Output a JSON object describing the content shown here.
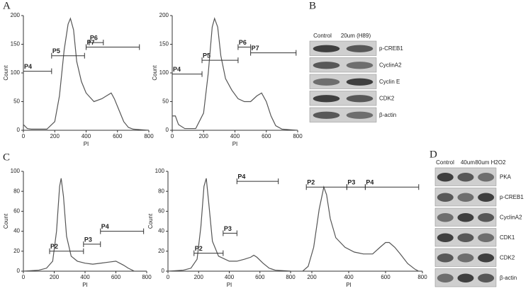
{
  "panel_labels": [
    "A",
    "B",
    "C",
    "D"
  ],
  "chart_data": [
    {
      "type": "line",
      "xlabel": "PI",
      "ylabel": "Count",
      "xlim": [
        0,
        800
      ],
      "ylim": [
        0,
        200
      ],
      "xticks": [
        0,
        200,
        400,
        600,
        800
      ],
      "yticks": [
        0,
        50,
        100,
        150,
        200
      ],
      "color": "#555555",
      "x": [
        0,
        25,
        50,
        100,
        150,
        200,
        230,
        260,
        285,
        300,
        320,
        340,
        370,
        400,
        450,
        500,
        530,
        560,
        580,
        610,
        640,
        670,
        700,
        750,
        800
      ],
      "y": [
        10,
        3,
        2,
        2,
        2,
        15,
        60,
        140,
        185,
        195,
        175,
        120,
        85,
        65,
        50,
        55,
        60,
        65,
        55,
        35,
        15,
        5,
        2,
        1,
        0
      ],
      "gates": [
        {
          "label": "P4",
          "x": [
            0,
            180
          ],
          "y": 103
        },
        {
          "label": "P5",
          "x": [
            180,
            390
          ],
          "y": 130
        },
        {
          "label": "P6",
          "x": [
            420,
            510
          ],
          "y": 153
        },
        {
          "label": "P7",
          "x": [
            400,
            740
          ],
          "y": 145
        }
      ]
    },
    {
      "type": "line",
      "xlabel": "PI",
      "ylabel": "Count",
      "xlim": [
        0,
        800
      ],
      "ylim": [
        0,
        200
      ],
      "xticks": [
        0,
        200,
        400,
        600,
        800
      ],
      "yticks": [
        0,
        50,
        100,
        150,
        200
      ],
      "color": "#555555",
      "x": [
        0,
        20,
        40,
        80,
        150,
        200,
        230,
        255,
        270,
        290,
        310,
        340,
        380,
        420,
        460,
        500,
        540,
        570,
        600,
        630,
        660,
        700,
        750,
        800
      ],
      "y": [
        25,
        25,
        10,
        3,
        3,
        30,
        100,
        180,
        195,
        180,
        130,
        90,
        70,
        55,
        50,
        50,
        60,
        65,
        50,
        25,
        8,
        2,
        1,
        0
      ],
      "gates": [
        {
          "label": "P4",
          "x": [
            0,
            190
          ],
          "y": 98
        },
        {
          "label": "P5",
          "x": [
            190,
            420
          ],
          "y": 122
        },
        {
          "label": "P6",
          "x": [
            420,
            500
          ],
          "y": 145
        },
        {
          "label": "P7",
          "x": [
            500,
            790
          ],
          "y": 135
        }
      ]
    },
    {
      "type": "line",
      "xlabel": "PI",
      "ylabel": "Count",
      "xlim": [
        0,
        800
      ],
      "ylim": [
        0,
        100
      ],
      "xticks": [
        0,
        200,
        400,
        600,
        800
      ],
      "yticks": [
        0,
        20,
        40,
        60,
        80,
        100
      ],
      "color": "#555555",
      "x": [
        0,
        100,
        150,
        190,
        215,
        235,
        245,
        260,
        280,
        310,
        350,
        400,
        450,
        500,
        550,
        600,
        650,
        680,
        720,
        800
      ],
      "y": [
        0,
        1,
        3,
        10,
        40,
        85,
        93,
        75,
        35,
        15,
        10,
        8,
        7,
        8,
        9,
        10,
        6,
        3,
        0,
        0
      ],
      "gates": [
        {
          "label": "P2",
          "x": [
            170,
            390
          ],
          "y": 20
        },
        {
          "label": "P3",
          "x": [
            390,
            500
          ],
          "y": 27
        },
        {
          "label": "P4",
          "x": [
            500,
            780
          ],
          "y": 40
        }
      ]
    },
    {
      "type": "line",
      "xlabel": "PI",
      "ylabel": "Count",
      "xlim": [
        0,
        800
      ],
      "ylim": [
        0,
        100
      ],
      "xticks": [
        0,
        200,
        400,
        600,
        800
      ],
      "yticks": [
        0,
        20,
        40,
        60,
        80,
        100
      ],
      "color": "#555555",
      "x": [
        0,
        100,
        150,
        190,
        215,
        235,
        250,
        265,
        290,
        330,
        400,
        450,
        500,
        540,
        560,
        580,
        620,
        660,
        700,
        800
      ],
      "y": [
        0,
        1,
        3,
        12,
        45,
        85,
        93,
        70,
        30,
        15,
        10,
        10,
        12,
        14,
        16,
        14,
        8,
        3,
        1,
        0
      ],
      "gates": [
        {
          "label": "P2",
          "x": [
            170,
            360
          ],
          "y": 18
        },
        {
          "label": "P3",
          "x": [
            360,
            450
          ],
          "y": 38
        },
        {
          "label": "P4",
          "x": [
            450,
            720
          ],
          "y": 90
        }
      ]
    },
    {
      "type": "line",
      "xlabel": "PI",
      "xlim": [
        0,
        800
      ],
      "ylim": [
        0,
        100
      ],
      "xticks": [
        200,
        400,
        600,
        800
      ],
      "color": "#555555",
      "x": [
        150,
        180,
        210,
        240,
        265,
        280,
        300,
        330,
        380,
        430,
        480,
        530,
        570,
        600,
        620,
        650,
        680,
        720,
        760,
        780
      ],
      "y": [
        0,
        5,
        25,
        65,
        88,
        80,
        55,
        35,
        25,
        20,
        18,
        18,
        25,
        30,
        30,
        25,
        18,
        8,
        2,
        0
      ],
      "gates": [
        {
          "label": "P2",
          "x": [
            170,
            390
          ],
          "y": 88
        },
        {
          "label": "P3",
          "x": [
            390,
            490
          ],
          "y": 88
        },
        {
          "label": "P4",
          "x": [
            490,
            780
          ],
          "y": 88
        }
      ]
    }
  ],
  "blot_b": {
    "lanes": [
      "Control",
      "20um (H89)"
    ],
    "rows": [
      "p-CREB1",
      "CyclinA2",
      "Cyclin E",
      "CDK2",
      "β-actin"
    ]
  },
  "blot_d": {
    "lanes": [
      "Control",
      "40um",
      "80um H2O2"
    ],
    "rows": [
      "PKA",
      "p-CREB1",
      "CyclinA2",
      "CDK1",
      "CDK2",
      "β-actin"
    ]
  }
}
